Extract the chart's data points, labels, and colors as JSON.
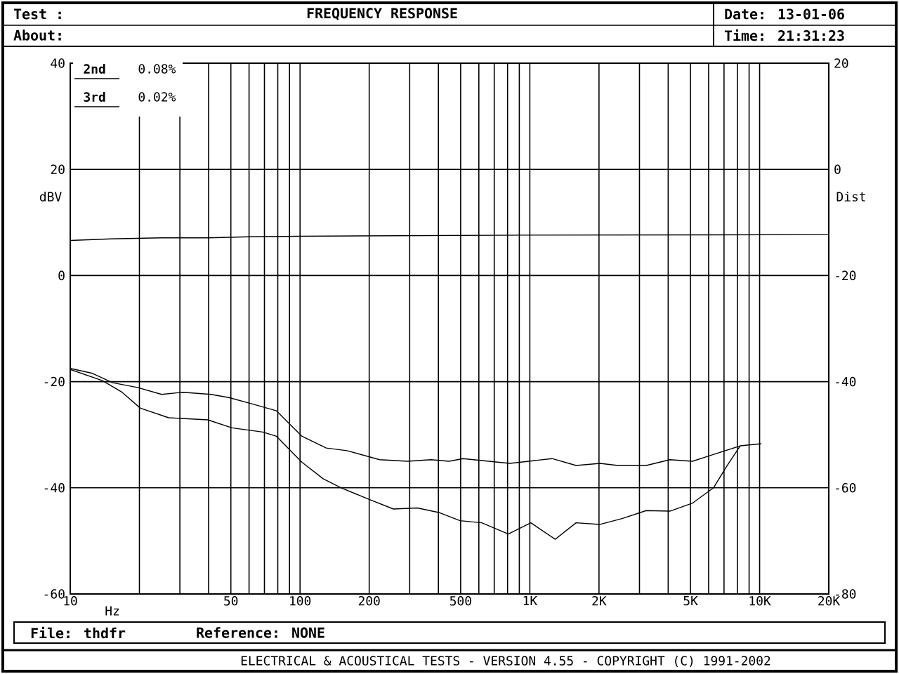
{
  "chart_data": {
    "type": "line",
    "title": "FREQUENCY RESPONSE",
    "xlabel": "Hz",
    "ylabel": "dBV",
    "y2label": "Dist",
    "annotations": [
      "Test :",
      "About:",
      "Date: 13-01-06",
      "Time: 21:31:23",
      "2nd",
      "0.08%",
      "3rd",
      "0.02%",
      "File: thdfr",
      "Reference: NONE",
      "ELECTRICAL & ACOUSTICAL TESTS  -  VERSION 4.55  -  COPYRIGHT (C) 1991-2002"
    ],
    "log": "x",
    "grid": true,
    "marker": "none",
    "line_style": "solid",
    "xlim": [
      10,
      20000
    ],
    "xticks": [
      10,
      {
        "value": 20,
        "label": null
      },
      {
        "value": 30,
        "label": null
      },
      {
        "value": 40,
        "label": null
      },
      50,
      {
        "value": 60,
        "label": null
      },
      {
        "value": 70,
        "label": null
      },
      {
        "value": 80,
        "label": null
      },
      {
        "value": 90,
        "label": null
      },
      100,
      200,
      {
        "value": 300,
        "label": null
      },
      {
        "value": 400,
        "label": null
      },
      500,
      {
        "value": 600,
        "label": null
      },
      {
        "value": 700,
        "label": null
      },
      {
        "value": 800,
        "label": null
      },
      {
        "value": 900,
        "label": null
      },
      {
        "value": 1000,
        "label": "1K"
      },
      {
        "value": 2000,
        "label": "2K"
      },
      {
        "value": 3000,
        "label": null
      },
      {
        "value": 4000,
        "label": null
      },
      {
        "value": 5000,
        "label": "5K"
      },
      {
        "value": 6000,
        "label": null
      },
      {
        "value": 7000,
        "label": null
      },
      {
        "value": 8000,
        "label": null
      },
      {
        "value": 9000,
        "label": null
      },
      {
        "value": 10000,
        "label": "10K"
      },
      {
        "value": 20000,
        "label": "20K"
      }
    ],
    "ylim": [
      -60,
      40
    ],
    "yticks": [
      -60,
      -40,
      -20,
      0,
      20,
      40
    ],
    "y2lim": [
      -80,
      20
    ],
    "y2ticks": [
      -80,
      -60,
      -40,
      -20,
      0,
      20
    ],
    "series": [
      {
        "color": "#000000",
        "x": [
          10,
          15,
          25,
          40,
          60,
          100,
          1000,
          20000
        ],
        "values": [
          6.6,
          6.9,
          7.1,
          7.1,
          7.3,
          7.4,
          7.6,
          7.7
        ]
      },
      {
        "color": "#000000",
        "axis": "y2",
        "x": [
          10,
          12.4,
          15.3,
          19.6,
          25,
          31,
          41,
          49,
          62,
          79,
          102,
          130,
          160,
          222,
          294,
          372,
          445,
          512,
          818,
          1250,
          1590,
          2020,
          2420,
          3210,
          4070,
          5100,
          8230,
          10170
        ],
        "values": [
          -37.5,
          -38.4,
          -40.2,
          -41.1,
          -42.4,
          -42.0,
          -42.4,
          -43.0,
          -44.2,
          -45.5,
          -50.3,
          -52.5,
          -53.0,
          -54.7,
          -55.0,
          -54.7,
          -55.0,
          -54.5,
          -55.4,
          -54.5,
          -55.8,
          -55.4,
          -55.8,
          -55.8,
          -54.7,
          -55.0,
          -52.1,
          -51.7
        ]
      },
      {
        "color": "#000000",
        "axis": "y2",
        "x": [
          10,
          13.8,
          16.8,
          20.2,
          26.8,
          39.7,
          50.5,
          68.8,
          79,
          102,
          126,
          151,
          200,
          255,
          324,
          405,
          497,
          618,
          806,
          1010,
          1290,
          1590,
          2020,
          2520,
          3210,
          4070,
          5100,
          6300,
          7150,
          8230
        ],
        "values": [
          -37.7,
          -39.8,
          -42.0,
          -45.0,
          -46.8,
          -47.2,
          -48.7,
          -49.5,
          -50.3,
          -55.2,
          -58.3,
          -60.0,
          -62.2,
          -64.0,
          -63.8,
          -64.7,
          -66.2,
          -66.6,
          -68.7,
          -66.6,
          -69.7,
          -66.6,
          -66.9,
          -65.8,
          -64.3,
          -64.4,
          -62.9,
          -60.0,
          -56.1,
          -52.1
        ]
      }
    ]
  }
}
